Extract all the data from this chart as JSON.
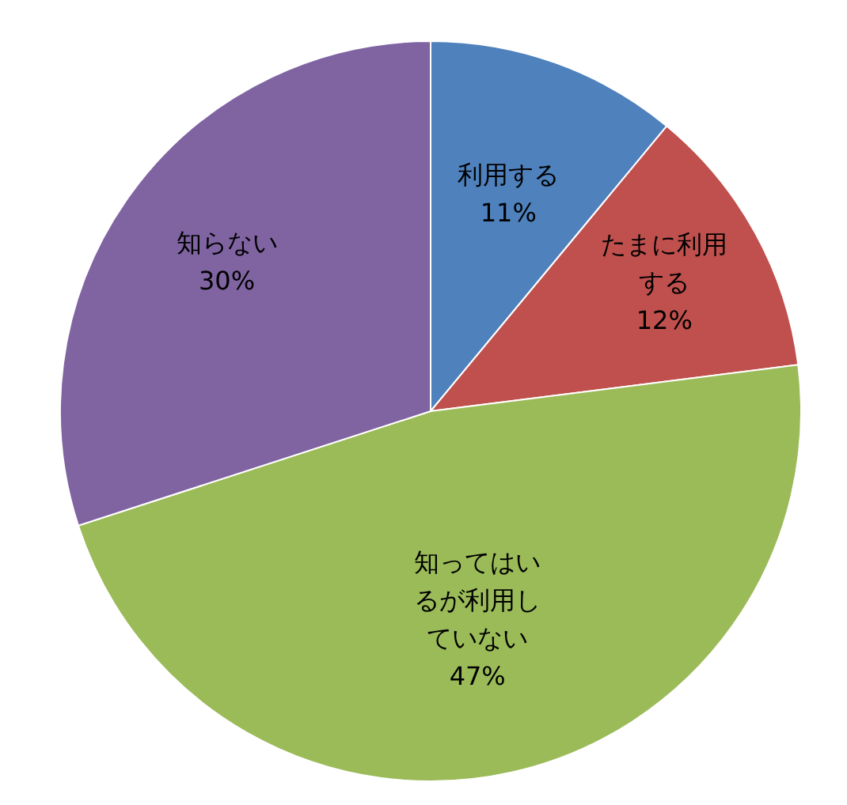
{
  "chart_data": {
    "type": "pie",
    "categories": [
      "利用する",
      "たまに利用する",
      "知ってはいるが利用していない",
      "知らない"
    ],
    "values": [
      11,
      12,
      47,
      30
    ],
    "colors": [
      "#4f81bd",
      "#c0504d",
      "#9bbb59",
      "#8064a2"
    ],
    "value_labels": [
      "11%",
      "12%",
      "47%",
      "30%"
    ]
  }
}
